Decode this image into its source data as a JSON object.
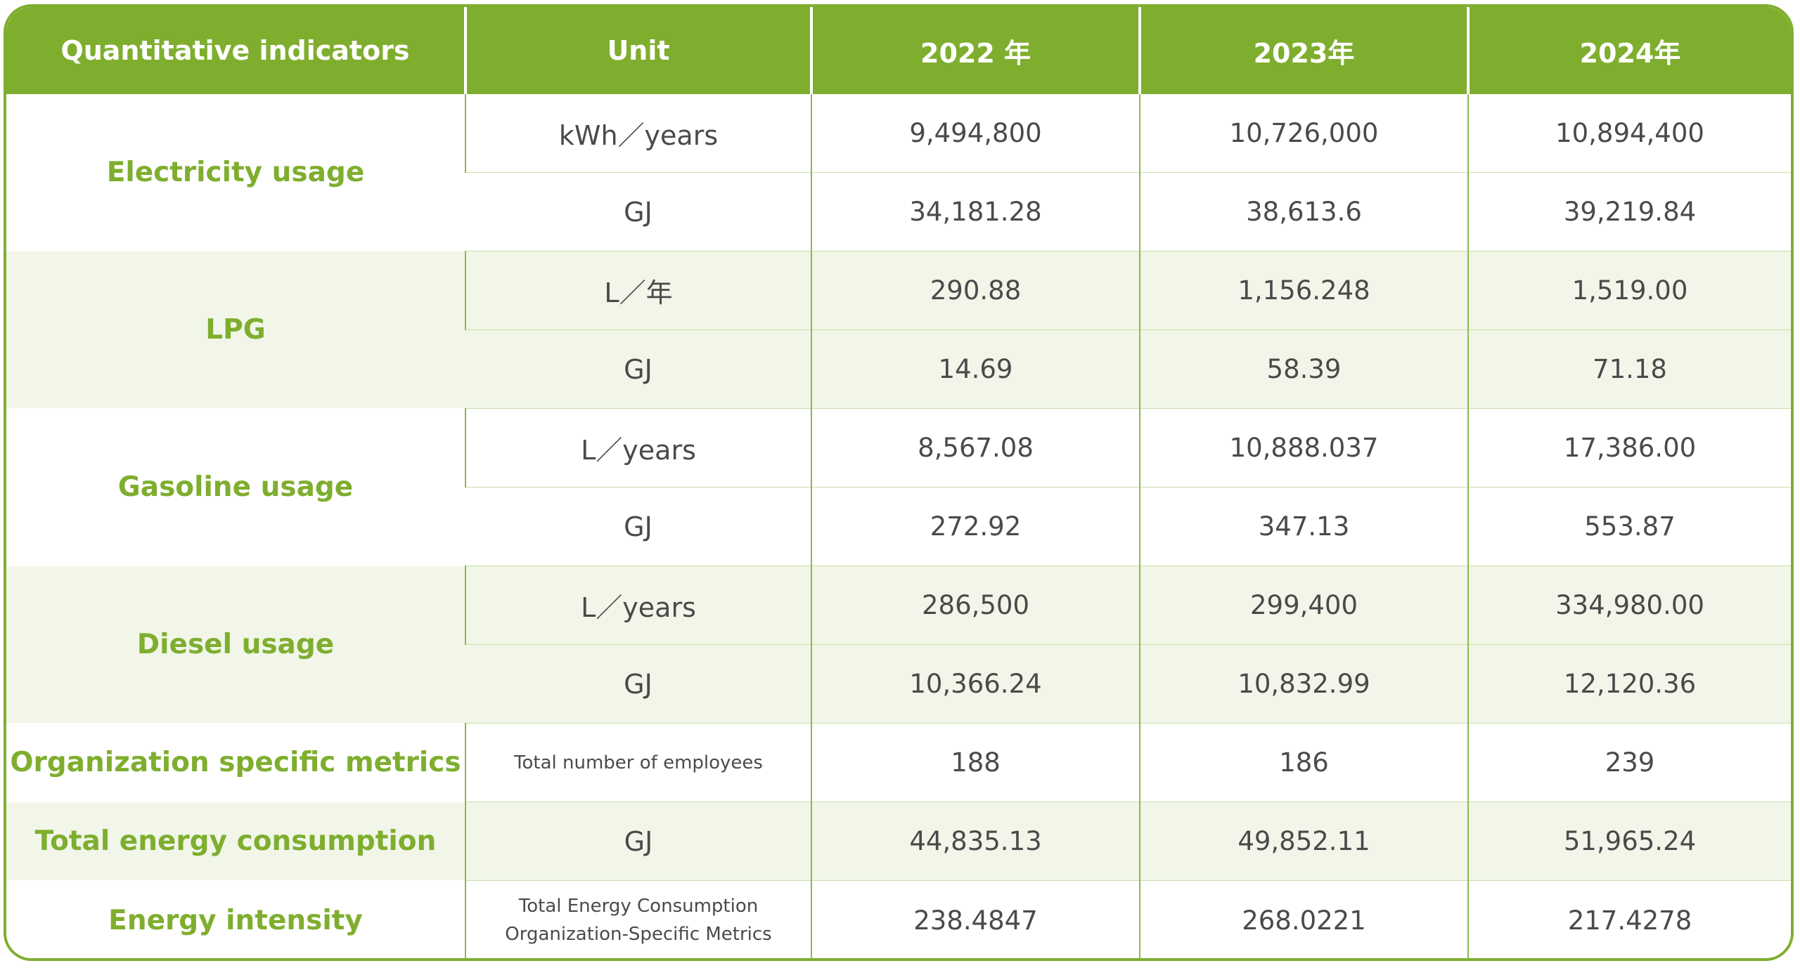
{
  "header": {
    "indicator": "Quantitative indicators",
    "unit": "Unit",
    "y2022": "2022 年",
    "y2023": "2023年",
    "y2024": "2024年"
  },
  "rows": [
    {
      "indicator": "Electricity usage",
      "sub": [
        {
          "unit": "kWh／years",
          "v2022": "9,494,800",
          "v2023": "10,726,000",
          "v2024": "10,894,400"
        },
        {
          "unit": "GJ",
          "v2022": "34,181.28",
          "v2023": "38,613.6",
          "v2024": "39,219.84"
        }
      ]
    },
    {
      "indicator": "LPG",
      "sub": [
        {
          "unit": "L／年",
          "v2022": "290.88",
          "v2023": "1,156.248",
          "v2024": "1,519.00"
        },
        {
          "unit": "GJ",
          "v2022": "14.69",
          "v2023": "58.39",
          "v2024": "71.18"
        }
      ]
    },
    {
      "indicator": "Gasoline usage",
      "sub": [
        {
          "unit": "L／years",
          "v2022": "8,567.08",
          "v2023": "10,888.037",
          "v2024": "17,386.00"
        },
        {
          "unit": "GJ",
          "v2022": "272.92",
          "v2023": "347.13",
          "v2024": "553.87"
        }
      ]
    },
    {
      "indicator": "Diesel usage",
      "sub": [
        {
          "unit": "L／years",
          "v2022": "286,500",
          "v2023": "299,400",
          "v2024": "334,980.00"
        },
        {
          "unit": "GJ",
          "v2022": "10,366.24",
          "v2023": "10,832.99",
          "v2024": "12,120.36"
        }
      ]
    },
    {
      "indicator": "Organization specific metrics",
      "unit": "Total number of employees",
      "v2022": "188",
      "v2023": "186",
      "v2024": "239"
    },
    {
      "indicator": "Total energy consumption",
      "unit": "GJ",
      "v2022": "44,835.13",
      "v2023": "49,852.11",
      "v2024": "51,965.24"
    },
    {
      "indicator": "Energy intensity",
      "unit_line1": "Total Energy Consumption",
      "unit_line2": "Organization-Specific Metrics",
      "v2022": "238.4847",
      "v2023": "268.0221",
      "v2024": "217.4278"
    }
  ],
  "colors": {
    "accent": "#7fae2f",
    "band": "#f1f6e9",
    "text": "#4a4a4a"
  }
}
